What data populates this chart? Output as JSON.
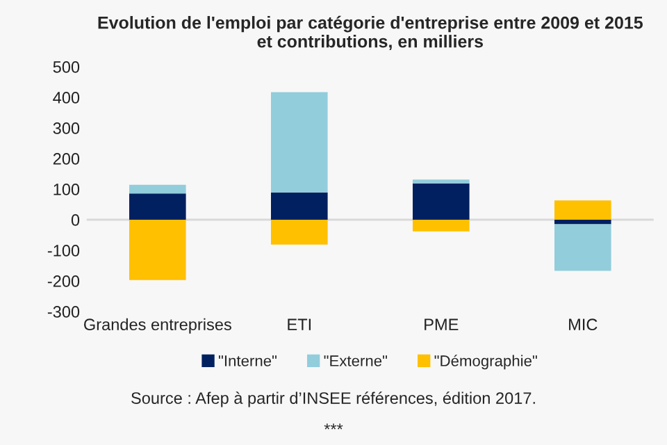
{
  "chart_data": {
    "type": "bar",
    "title": "Evolution de l'emploi par catégorie d'entreprise entre 2009 et 2015\net contributions, en milliers",
    "categories": [
      "Grandes entreprises",
      "ETI",
      "PME",
      "MIC"
    ],
    "series": [
      {
        "name": "\"Interne\"",
        "color": "#002060",
        "values": [
          86,
          89,
          119,
          -15
        ]
      },
      {
        "name": "\"Externe\"",
        "color": "#92cddc",
        "values": [
          28,
          328,
          12,
          -152
        ]
      },
      {
        "name": "\"Démographie\"",
        "color": "#ffc000",
        "values": [
          -197,
          -81,
          -38,
          63
        ]
      }
    ],
    "stacked": true,
    "ylim": [
      -300,
      500
    ],
    "yticks": [
      -300,
      -200,
      -100,
      0,
      100,
      200,
      300,
      400,
      500
    ],
    "legend": "bottom",
    "annotations": [
      "Source : Afep à partir d’INSEE références, édition 2017.",
      "***"
    ]
  }
}
